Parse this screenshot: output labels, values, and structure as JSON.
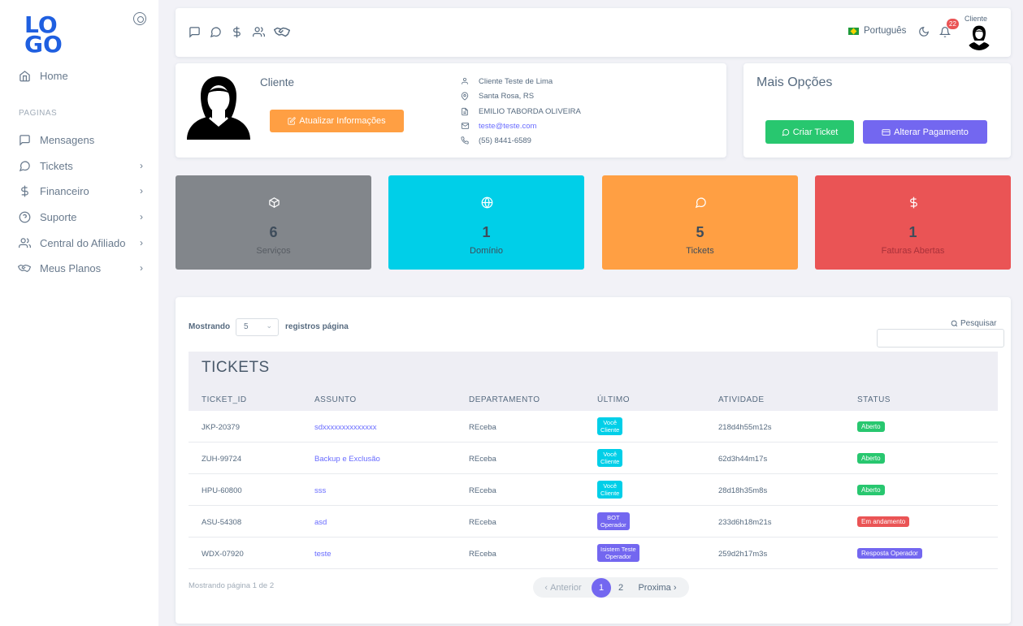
{
  "sidebar": {
    "logo_top": "LO",
    "logo_bottom": "GO",
    "home": "Home",
    "section": "PAGINAS",
    "items": [
      {
        "label": "Mensagens",
        "icon": "message-square-icon"
      },
      {
        "label": "Tickets",
        "icon": "message-circle-icon"
      },
      {
        "label": "Financeiro",
        "icon": "dollar-icon"
      },
      {
        "label": "Suporte",
        "icon": "help-circle-icon"
      },
      {
        "label": "Central do Afiliado",
        "icon": "users-icon"
      },
      {
        "label": "Meus Planos",
        "icon": "handshake-icon"
      }
    ]
  },
  "topbar": {
    "language": "Português",
    "notifications": "22",
    "user": "Cliente"
  },
  "profile": {
    "name": "Cliente",
    "update_button": "Atualizar Informações",
    "full_name": "Cliente Teste de Lima",
    "location": "Santa Rosa, RS",
    "company": "EMILIO TABORDA OLIVEIRA",
    "email": "teste@teste.com",
    "phone": "(55) 8441-6589"
  },
  "options": {
    "title": "Mais Opções",
    "create_ticket": "Criar Ticket",
    "change_payment": "Alterar Pagamento"
  },
  "stats": [
    {
      "value": "6",
      "label": "Serviços",
      "color": "#82868b"
    },
    {
      "value": "1",
      "label": "Domínio",
      "color": "#00cfe8"
    },
    {
      "value": "5",
      "label": "Tickets",
      "color": "#ff9f43"
    },
    {
      "value": "1",
      "label": "Faturas Abertas",
      "color": "#ea5455"
    }
  ],
  "table": {
    "showing_label": "Mostrando",
    "per_page_value": "5",
    "per_page_label": "registros página",
    "search_label": "Pesquisar",
    "title": "TICKETS",
    "headers": [
      "TICKET_ID",
      "ASSUNTO",
      "DEPARTAMENTO",
      "ÚLTIMO",
      "ATIVIDADE",
      "STATUS"
    ],
    "rows": [
      {
        "id": "JKP-20379",
        "subject": "sdxxxxxxxxxxxxxx",
        "dept": "REceba",
        "last1": "Você",
        "last2": "Cliente",
        "last_color": "#00cfe8",
        "activity": "218d4h55m12s",
        "status": "Aberto",
        "status_color": "#28c76f"
      },
      {
        "id": "ZUH-99724",
        "subject": "Backup e Exclusão",
        "dept": "REceba",
        "last1": "Você",
        "last2": "Cliente",
        "last_color": "#00cfe8",
        "activity": "62d3h44m17s",
        "status": "Aberto",
        "status_color": "#28c76f"
      },
      {
        "id": "HPU-60800",
        "subject": "sss",
        "dept": "REceba",
        "last1": "Você",
        "last2": "Cliente",
        "last_color": "#00cfe8",
        "activity": "28d18h35m8s",
        "status": "Aberto",
        "status_color": "#28c76f"
      },
      {
        "id": "ASU-54308",
        "subject": "asd",
        "dept": "REceba",
        "last1": "BOT",
        "last2": "Operador",
        "last_color": "#7367f0",
        "activity": "233d6h18m21s",
        "status": "Em andamento",
        "status_color": "#ea5455"
      },
      {
        "id": "WDX-07920",
        "subject": "teste",
        "dept": "REceba",
        "last1": "Isistem Teste",
        "last2": "Operador",
        "last_color": "#7367f0",
        "activity": "259d2h17m3s",
        "status": "Resposta Operador",
        "status_color": "#7367f0"
      }
    ],
    "footer": "Mostrando página 1 de 2",
    "prev": "Anterior",
    "pages": [
      "1",
      "2"
    ],
    "next": "Proxima"
  }
}
